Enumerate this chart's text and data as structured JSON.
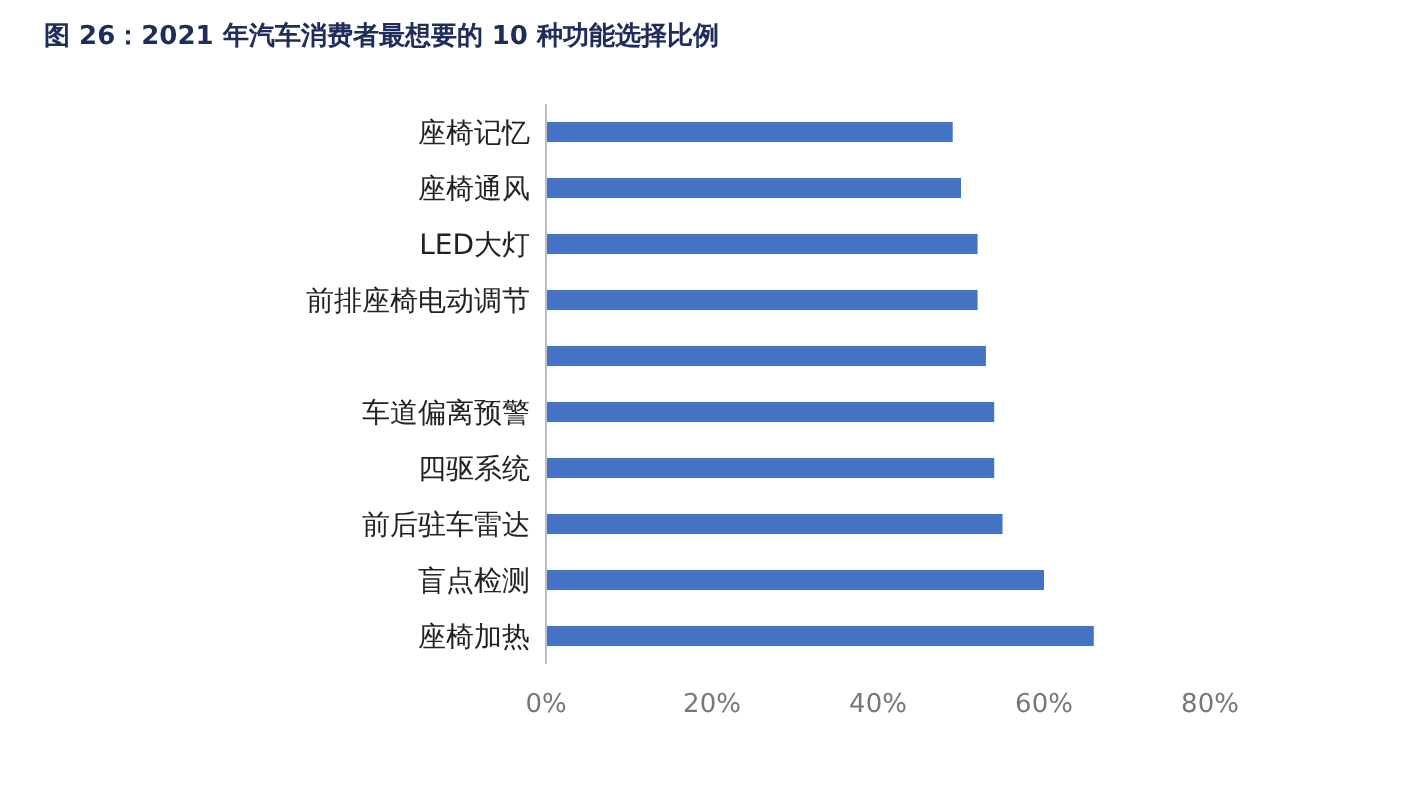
{
  "chart_data": {
    "type": "bar",
    "orientation": "horizontal",
    "title": "图 26：2021 年汽车消费者最想要的 10 种功能选择比例",
    "categories": [
      "座椅记忆",
      "座椅通风",
      "LED大灯",
      "前排座椅电动调节",
      null,
      "车道偏离预警",
      "四驱系统",
      "前后驻车雷达",
      "盲点检测",
      "座椅加热"
    ],
    "values": [
      49,
      50,
      52,
      52,
      53,
      54,
      54,
      55,
      60,
      66
    ],
    "color": "#4472c4",
    "xlim": [
      0,
      80
    ],
    "xticks": [
      {
        "value": 0,
        "label": "0%"
      },
      {
        "value": 20,
        "label": "20%"
      },
      {
        "value": 40,
        "label": "40%"
      },
      {
        "value": 60,
        "label": "60%"
      },
      {
        "value": 80,
        "label": "80%"
      }
    ]
  }
}
